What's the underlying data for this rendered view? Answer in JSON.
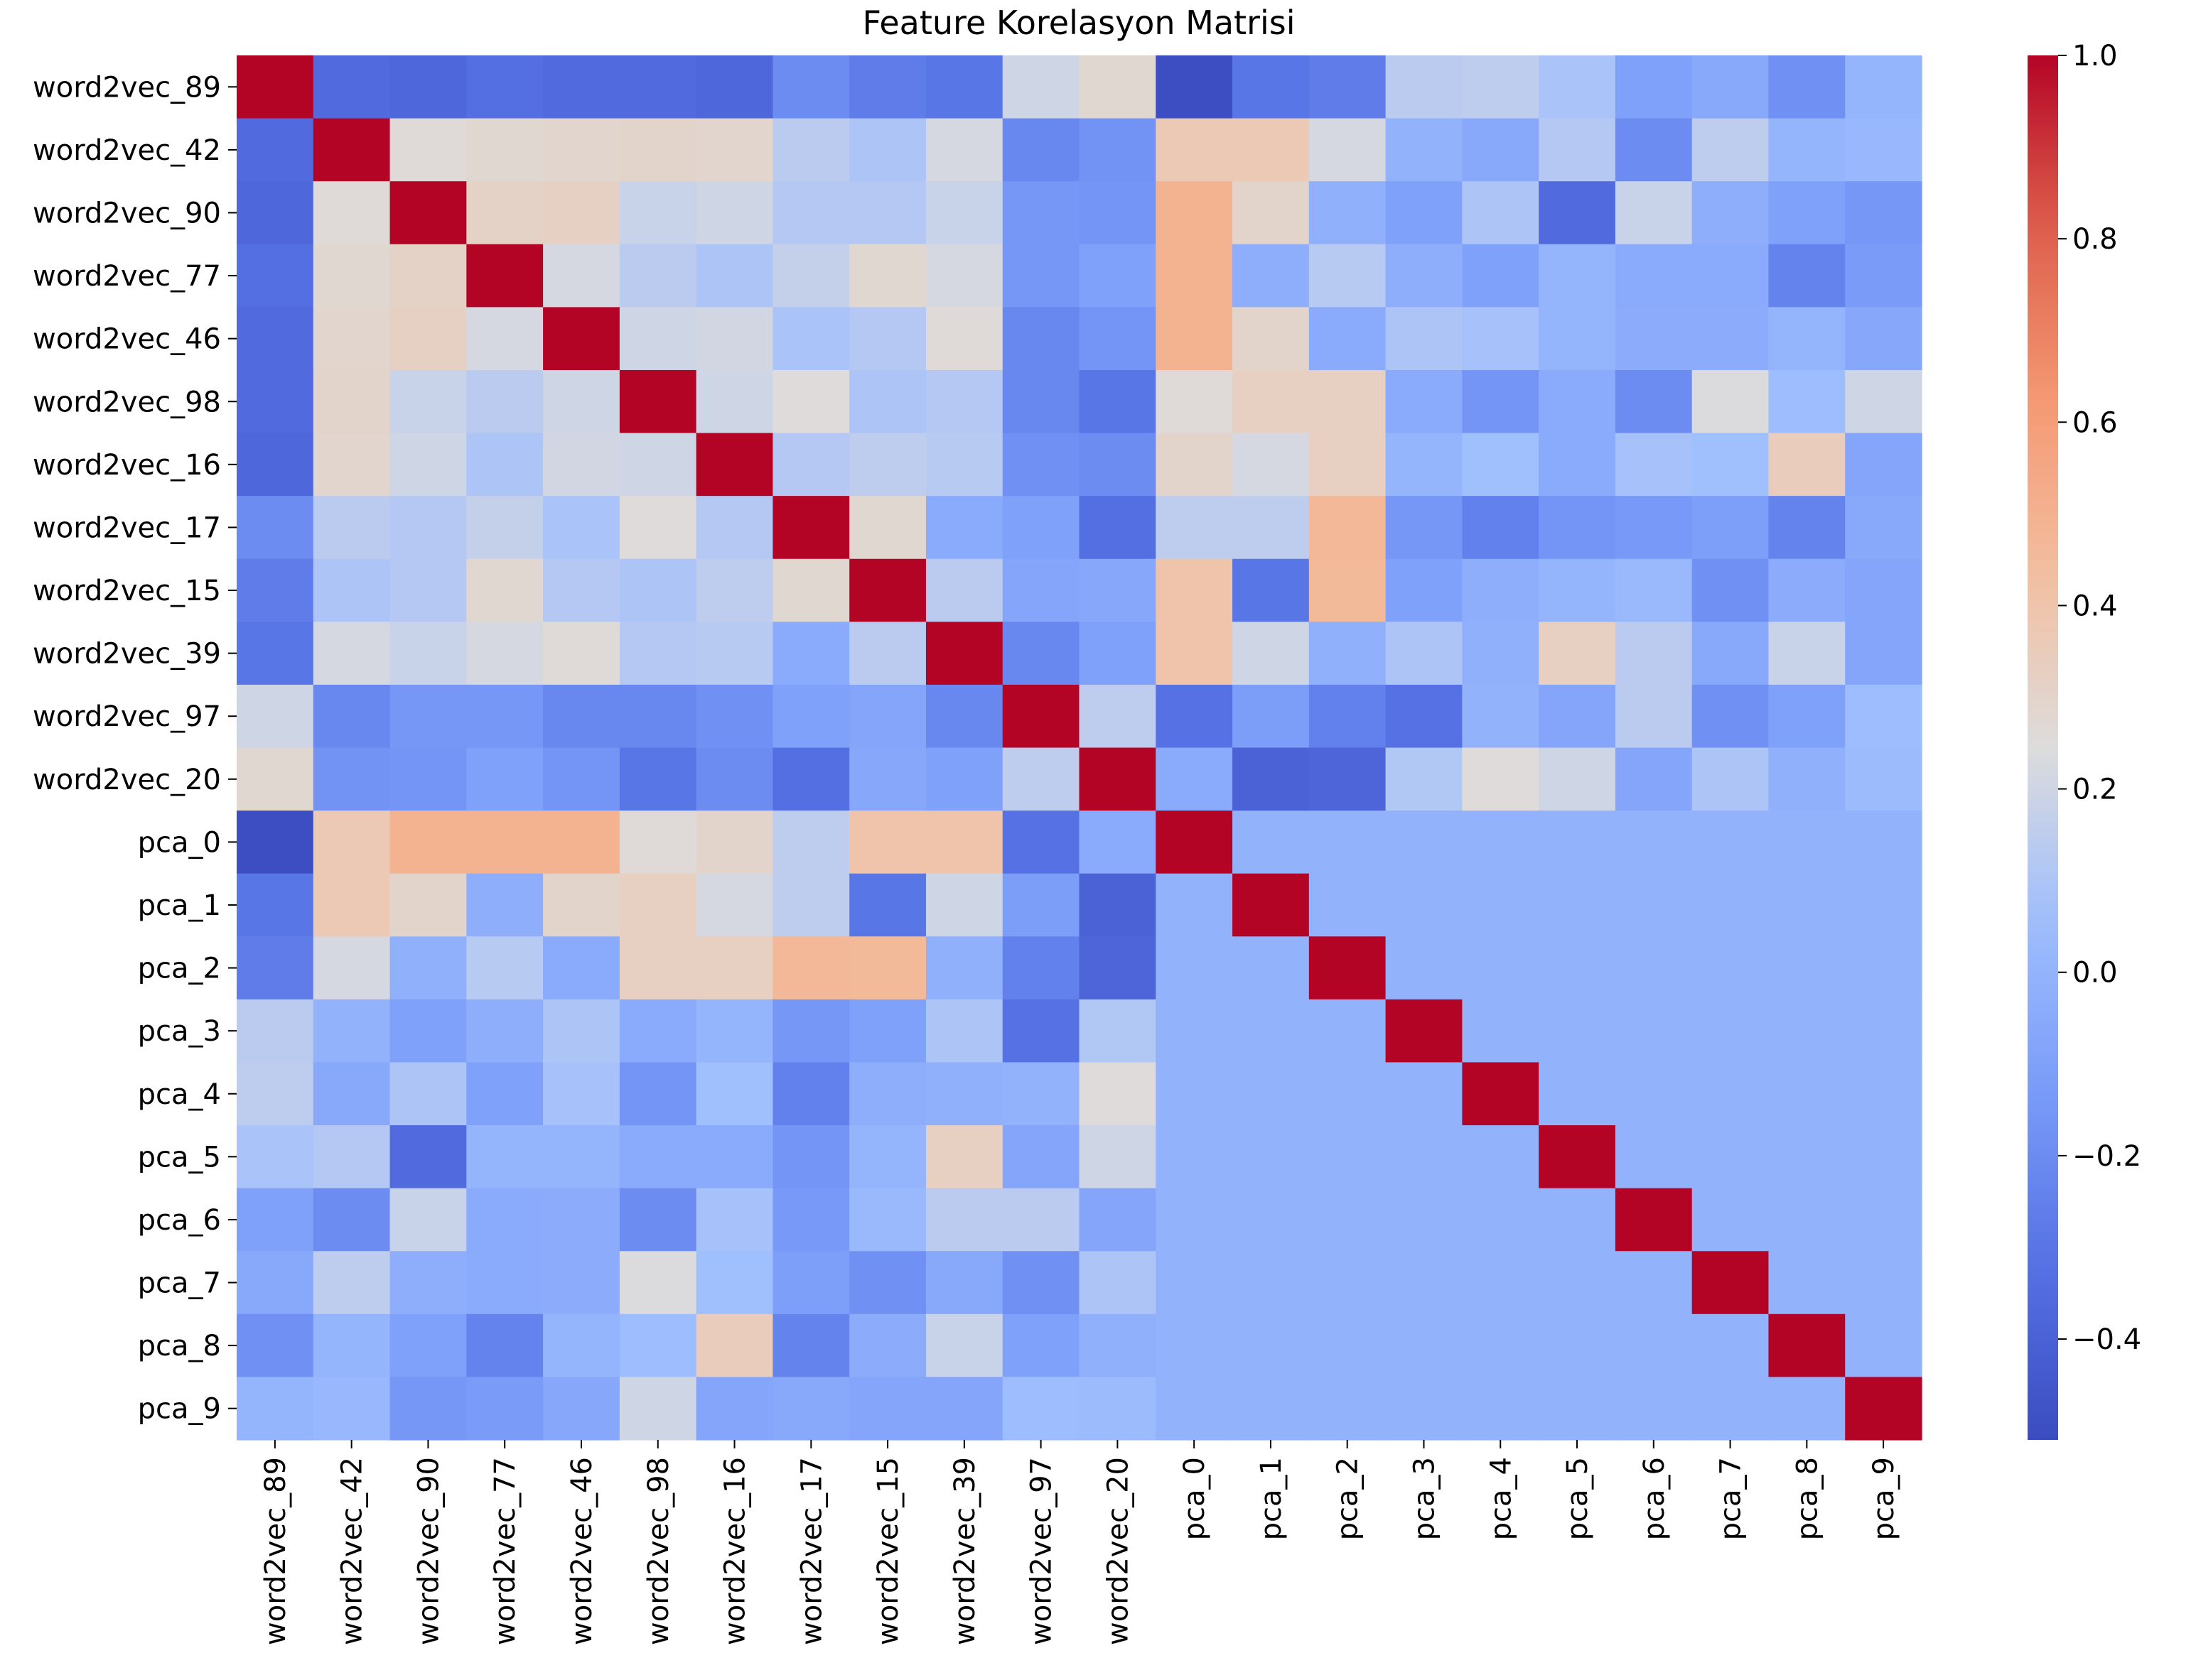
{
  "chart_data": {
    "type": "heatmap",
    "title": "Feature Korelasyon Matrisi",
    "xlabel": "",
    "ylabel": "",
    "labels": [
      "word2vec_89",
      "word2vec_42",
      "word2vec_90",
      "word2vec_77",
      "word2vec_46",
      "word2vec_98",
      "word2vec_16",
      "word2vec_17",
      "word2vec_15",
      "word2vec_39",
      "word2vec_97",
      "word2vec_20",
      "pca_0",
      "pca_1",
      "pca_2",
      "pca_3",
      "pca_4",
      "pca_5",
      "pca_6",
      "pca_7",
      "pca_8",
      "pca_9"
    ],
    "colormap": "coolwarm",
    "vmin": -0.51,
    "vmax": 1.0,
    "colorbar_ticks": [
      1.0,
      0.8,
      0.6,
      0.4,
      0.2,
      0.0,
      -0.2,
      -0.4
    ],
    "colorbar_tick_labels": [
      "1.0",
      "0.8",
      "0.6",
      "0.4",
      "0.2",
      "0.0",
      "−0.2",
      "−0.4"
    ],
    "values": [
      [
        1.0,
        -0.35,
        -0.37,
        -0.33,
        -0.35,
        -0.35,
        -0.37,
        -0.2,
        -0.27,
        -0.3,
        0.2,
        0.28,
        -0.5,
        -0.3,
        -0.27,
        0.14,
        0.15,
        0.09,
        -0.1,
        -0.06,
        -0.18,
        0.0
      ],
      [
        -0.35,
        1.0,
        0.26,
        0.28,
        0.29,
        0.3,
        0.29,
        0.14,
        0.1,
        0.22,
        -0.22,
        -0.17,
        0.37,
        0.37,
        0.22,
        -0.01,
        -0.06,
        0.12,
        -0.2,
        0.15,
        0.0,
        0.02
      ],
      [
        -0.37,
        0.26,
        1.0,
        0.31,
        0.32,
        0.18,
        0.2,
        0.12,
        0.12,
        0.18,
        -0.15,
        -0.16,
        0.5,
        0.3,
        -0.02,
        -0.1,
        0.1,
        -0.35,
        0.18,
        -0.03,
        -0.1,
        -0.15
      ],
      [
        -0.33,
        0.28,
        0.31,
        1.0,
        0.22,
        0.14,
        0.1,
        0.17,
        0.28,
        0.22,
        -0.15,
        -0.1,
        0.5,
        -0.03,
        0.13,
        -0.03,
        -0.1,
        0.0,
        -0.05,
        -0.05,
        -0.24,
        -0.13
      ],
      [
        -0.35,
        0.29,
        0.32,
        0.22,
        1.0,
        0.2,
        0.21,
        0.09,
        0.12,
        0.26,
        -0.22,
        -0.16,
        0.5,
        0.3,
        -0.05,
        0.1,
        0.08,
        0.0,
        -0.04,
        -0.04,
        0.0,
        -0.07
      ],
      [
        -0.35,
        0.3,
        0.18,
        0.14,
        0.2,
        1.0,
        0.2,
        0.25,
        0.1,
        0.12,
        -0.22,
        -0.3,
        0.26,
        0.33,
        0.33,
        -0.05,
        -0.16,
        -0.05,
        -0.2,
        0.24,
        0.05,
        0.2
      ],
      [
        -0.37,
        0.29,
        0.2,
        0.1,
        0.21,
        0.2,
        1.0,
        0.12,
        0.15,
        0.13,
        -0.18,
        -0.2,
        0.3,
        0.22,
        0.33,
        0.0,
        0.06,
        -0.05,
        0.08,
        0.06,
        0.35,
        -0.08
      ],
      [
        -0.2,
        0.14,
        0.12,
        0.17,
        0.09,
        0.25,
        0.12,
        1.0,
        0.28,
        -0.05,
        -0.1,
        -0.33,
        0.15,
        0.15,
        0.47,
        -0.15,
        -0.25,
        -0.16,
        -0.14,
        -0.11,
        -0.24,
        -0.06
      ],
      [
        -0.27,
        0.1,
        0.12,
        0.28,
        0.12,
        0.1,
        0.15,
        0.28,
        1.0,
        0.14,
        -0.08,
        -0.07,
        0.4,
        -0.3,
        0.46,
        -0.1,
        -0.03,
        0.0,
        0.03,
        -0.18,
        -0.04,
        -0.08
      ],
      [
        -0.3,
        0.22,
        0.18,
        0.22,
        0.26,
        0.12,
        0.13,
        -0.05,
        0.14,
        1.0,
        -0.22,
        -0.1,
        0.4,
        0.2,
        -0.02,
        0.1,
        -0.02,
        0.33,
        0.14,
        -0.06,
        0.18,
        -0.08
      ],
      [
        0.2,
        -0.22,
        -0.15,
        -0.15,
        -0.22,
        -0.22,
        -0.18,
        -0.1,
        -0.08,
        -0.22,
        1.0,
        0.15,
        -0.32,
        -0.12,
        -0.25,
        -0.32,
        -0.01,
        -0.08,
        0.14,
        -0.18,
        -0.1,
        0.05
      ],
      [
        0.28,
        -0.17,
        -0.16,
        -0.1,
        -0.16,
        -0.3,
        -0.2,
        -0.33,
        -0.07,
        -0.1,
        0.15,
        1.0,
        -0.05,
        -0.4,
        -0.38,
        0.11,
        0.25,
        0.2,
        -0.08,
        0.1,
        -0.02,
        0.04
      ],
      [
        -0.5,
        0.37,
        0.5,
        0.5,
        0.5,
        0.26,
        0.3,
        0.15,
        0.4,
        0.4,
        -0.32,
        -0.05,
        1.0,
        -0.01,
        -0.01,
        -0.01,
        -0.01,
        -0.01,
        -0.01,
        -0.01,
        -0.01,
        -0.01
      ],
      [
        -0.3,
        0.37,
        0.3,
        -0.03,
        0.3,
        0.33,
        0.22,
        0.15,
        -0.3,
        0.2,
        -0.12,
        -0.4,
        -0.01,
        1.0,
        -0.01,
        -0.01,
        -0.01,
        -0.01,
        -0.01,
        -0.01,
        -0.01,
        -0.01
      ],
      [
        -0.27,
        0.22,
        -0.02,
        0.13,
        -0.05,
        0.33,
        0.33,
        0.47,
        0.46,
        -0.02,
        -0.25,
        -0.38,
        -0.01,
        -0.01,
        1.0,
        -0.01,
        -0.01,
        -0.01,
        -0.01,
        -0.01,
        -0.01,
        -0.01
      ],
      [
        0.14,
        -0.01,
        -0.1,
        -0.03,
        0.1,
        -0.05,
        0.0,
        -0.15,
        -0.1,
        0.1,
        -0.32,
        0.11,
        -0.01,
        -0.01,
        -0.01,
        1.0,
        -0.01,
        -0.01,
        -0.01,
        -0.01,
        -0.01,
        -0.01
      ],
      [
        0.15,
        -0.06,
        0.1,
        -0.1,
        0.08,
        -0.16,
        0.06,
        -0.25,
        -0.03,
        -0.02,
        -0.01,
        0.25,
        -0.01,
        -0.01,
        -0.01,
        -0.01,
        1.0,
        -0.01,
        -0.01,
        -0.01,
        -0.01,
        -0.01
      ],
      [
        0.09,
        0.12,
        -0.35,
        0.0,
        0.0,
        -0.05,
        -0.05,
        -0.16,
        0.0,
        0.33,
        -0.08,
        0.2,
        -0.01,
        -0.01,
        -0.01,
        -0.01,
        -0.01,
        1.0,
        -0.01,
        -0.01,
        -0.01,
        -0.01
      ],
      [
        -0.1,
        -0.2,
        0.18,
        -0.05,
        -0.04,
        -0.2,
        0.08,
        -0.14,
        0.03,
        0.14,
        0.14,
        -0.08,
        -0.01,
        -0.01,
        -0.01,
        -0.01,
        -0.01,
        -0.01,
        1.0,
        -0.01,
        -0.01,
        -0.01
      ],
      [
        -0.06,
        0.15,
        -0.03,
        -0.05,
        -0.04,
        0.24,
        0.06,
        -0.11,
        -0.18,
        -0.06,
        -0.18,
        0.1,
        -0.01,
        -0.01,
        -0.01,
        -0.01,
        -0.01,
        -0.01,
        -0.01,
        1.0,
        -0.01,
        -0.01
      ],
      [
        -0.18,
        0.0,
        -0.1,
        -0.24,
        0.0,
        0.05,
        0.35,
        -0.24,
        -0.04,
        0.18,
        -0.1,
        -0.02,
        -0.01,
        -0.01,
        -0.01,
        -0.01,
        -0.01,
        -0.01,
        -0.01,
        -0.01,
        1.0,
        -0.01
      ],
      [
        0.0,
        0.02,
        -0.15,
        -0.13,
        -0.07,
        0.2,
        -0.08,
        -0.06,
        -0.08,
        -0.08,
        0.05,
        0.04,
        -0.01,
        -0.01,
        -0.01,
        -0.01,
        -0.01,
        -0.01,
        -0.01,
        -0.01,
        -0.01,
        1.0
      ]
    ]
  }
}
